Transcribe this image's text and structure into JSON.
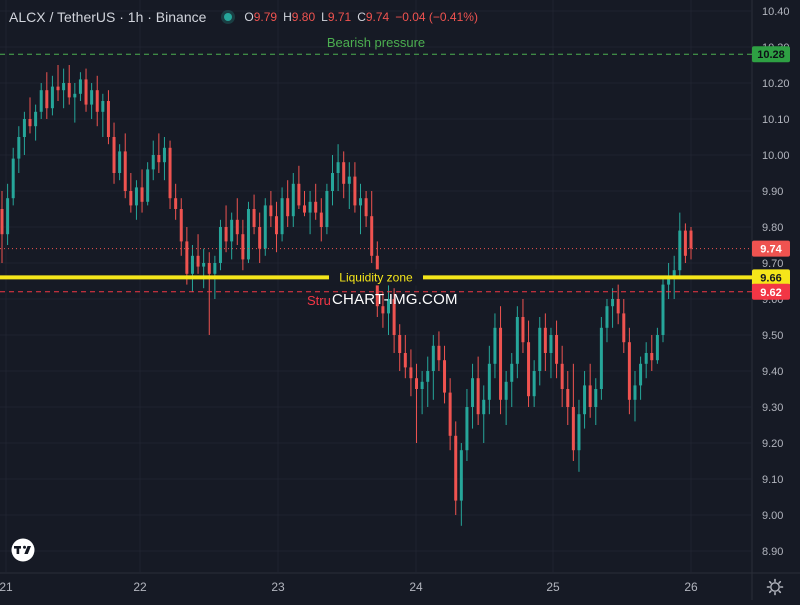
{
  "header": {
    "symbol": "ALCX / TetherUS · 1h · Binance",
    "open_label": "O",
    "open": "9.79",
    "high_label": "H",
    "high": "9.80",
    "low_label": "L",
    "low": "9.71",
    "close_label": "C",
    "close": "9.74",
    "change": "−0.04 (−0.41%)"
  },
  "watermark": "CHART-IMG.COM",
  "annotations": {
    "bearish": "Bearish pressure",
    "liquidity": "Liquidity zone",
    "structure": "Stru"
  },
  "price_tags": {
    "bearish": "10.28",
    "current": "9.74",
    "liquidity": "9.66",
    "structure": "9.62"
  },
  "colors": {
    "background": "#161a25",
    "up": "#26a69a",
    "down": "#ef5350",
    "liquidity": "#f5e61a",
    "bearish": "#4caf50",
    "structure": "#f23645"
  },
  "icons": {
    "logo": "tradingview-logo-icon",
    "settings": "gear-icon",
    "status": "market-open-dot-icon"
  },
  "chart_data": {
    "type": "candlestick",
    "y_axis_ticks": [
      "10.40",
      "10.30",
      "10.20",
      "10.10",
      "10.00",
      "9.90",
      "9.80",
      "9.70",
      "9.60",
      "9.50",
      "9.40",
      "9.30",
      "9.20",
      "9.10",
      "9.00",
      "8.90"
    ],
    "ylim": [
      8.85,
      10.43
    ],
    "x_axis_ticks": [
      "21",
      "22",
      "23",
      "24",
      "25",
      "26"
    ],
    "levels": [
      {
        "label": "Bearish pressure",
        "price": 10.28
      },
      {
        "label": "Liquidity zone",
        "price": 9.66
      },
      {
        "label": "Stru",
        "price": 9.62
      }
    ],
    "last_price": 9.74,
    "candles": [
      {
        "o": 9.85,
        "h": 9.9,
        "l": 9.7,
        "c": 9.78
      },
      {
        "o": 9.78,
        "h": 9.92,
        "l": 9.75,
        "c": 9.88
      },
      {
        "o": 9.88,
        "h": 10.02,
        "l": 9.86,
        "c": 9.99
      },
      {
        "o": 9.99,
        "h": 10.08,
        "l": 9.95,
        "c": 10.05
      },
      {
        "o": 10.05,
        "h": 10.12,
        "l": 10.0,
        "c": 10.1
      },
      {
        "o": 10.1,
        "h": 10.16,
        "l": 10.06,
        "c": 10.08
      },
      {
        "o": 10.08,
        "h": 10.14,
        "l": 10.04,
        "c": 10.12
      },
      {
        "o": 10.12,
        "h": 10.2,
        "l": 10.1,
        "c": 10.18
      },
      {
        "o": 10.18,
        "h": 10.23,
        "l": 10.1,
        "c": 10.13
      },
      {
        "o": 10.13,
        "h": 10.22,
        "l": 10.11,
        "c": 10.19
      },
      {
        "o": 10.19,
        "h": 10.25,
        "l": 10.15,
        "c": 10.18
      },
      {
        "o": 10.18,
        "h": 10.24,
        "l": 10.13,
        "c": 10.2
      },
      {
        "o": 10.2,
        "h": 10.25,
        "l": 10.14,
        "c": 10.16
      },
      {
        "o": 10.16,
        "h": 10.2,
        "l": 10.09,
        "c": 10.17
      },
      {
        "o": 10.17,
        "h": 10.23,
        "l": 10.15,
        "c": 10.21
      },
      {
        "o": 10.21,
        "h": 10.24,
        "l": 10.12,
        "c": 10.14
      },
      {
        "o": 10.14,
        "h": 10.2,
        "l": 10.1,
        "c": 10.18
      },
      {
        "o": 10.18,
        "h": 10.22,
        "l": 10.08,
        "c": 10.12
      },
      {
        "o": 10.12,
        "h": 10.17,
        "l": 10.05,
        "c": 10.15
      },
      {
        "o": 10.15,
        "h": 10.18,
        "l": 10.03,
        "c": 10.05
      },
      {
        "o": 10.05,
        "h": 10.09,
        "l": 9.92,
        "c": 9.95
      },
      {
        "o": 9.95,
        "h": 10.03,
        "l": 9.93,
        "c": 10.01
      },
      {
        "o": 10.01,
        "h": 10.06,
        "l": 9.88,
        "c": 9.9
      },
      {
        "o": 9.9,
        "h": 9.95,
        "l": 9.84,
        "c": 9.86
      },
      {
        "o": 9.86,
        "h": 9.93,
        "l": 9.82,
        "c": 9.91
      },
      {
        "o": 9.91,
        "h": 9.96,
        "l": 9.84,
        "c": 9.87
      },
      {
        "o": 9.87,
        "h": 9.98,
        "l": 9.86,
        "c": 9.96
      },
      {
        "o": 9.96,
        "h": 10.04,
        "l": 9.93,
        "c": 10.0
      },
      {
        "o": 10.0,
        "h": 10.06,
        "l": 9.95,
        "c": 9.98
      },
      {
        "o": 9.98,
        "h": 10.05,
        "l": 9.93,
        "c": 10.02
      },
      {
        "o": 10.02,
        "h": 10.04,
        "l": 9.85,
        "c": 9.88
      },
      {
        "o": 9.88,
        "h": 9.92,
        "l": 9.82,
        "c": 9.85
      },
      {
        "o": 9.85,
        "h": 9.88,
        "l": 9.72,
        "c": 9.76
      },
      {
        "o": 9.76,
        "h": 9.8,
        "l": 9.64,
        "c": 9.67
      },
      {
        "o": 9.67,
        "h": 9.75,
        "l": 9.62,
        "c": 9.72
      },
      {
        "o": 9.72,
        "h": 9.78,
        "l": 9.67,
        "c": 9.69
      },
      {
        "o": 9.69,
        "h": 9.74,
        "l": 9.63,
        "c": 9.7
      },
      {
        "o": 9.7,
        "h": 9.73,
        "l": 9.5,
        "c": 9.67
      },
      {
        "o": 9.67,
        "h": 9.72,
        "l": 9.6,
        "c": 9.7
      },
      {
        "o": 9.7,
        "h": 9.82,
        "l": 9.68,
        "c": 9.8
      },
      {
        "o": 9.8,
        "h": 9.86,
        "l": 9.73,
        "c": 9.76
      },
      {
        "o": 9.76,
        "h": 9.84,
        "l": 9.71,
        "c": 9.82
      },
      {
        "o": 9.82,
        "h": 9.88,
        "l": 9.75,
        "c": 9.78
      },
      {
        "o": 9.78,
        "h": 9.82,
        "l": 9.68,
        "c": 9.71
      },
      {
        "o": 9.71,
        "h": 9.87,
        "l": 9.7,
        "c": 9.85
      },
      {
        "o": 9.85,
        "h": 9.89,
        "l": 9.78,
        "c": 9.8
      },
      {
        "o": 9.8,
        "h": 9.84,
        "l": 9.7,
        "c": 9.74
      },
      {
        "o": 9.74,
        "h": 9.88,
        "l": 9.72,
        "c": 9.86
      },
      {
        "o": 9.86,
        "h": 9.9,
        "l": 9.8,
        "c": 9.83
      },
      {
        "o": 9.83,
        "h": 9.87,
        "l": 9.73,
        "c": 9.78
      },
      {
        "o": 9.78,
        "h": 9.91,
        "l": 9.76,
        "c": 9.88
      },
      {
        "o": 9.88,
        "h": 9.93,
        "l": 9.8,
        "c": 9.83
      },
      {
        "o": 9.83,
        "h": 9.95,
        "l": 9.8,
        "c": 9.92
      },
      {
        "o": 9.92,
        "h": 9.97,
        "l": 9.85,
        "c": 9.86
      },
      {
        "o": 9.86,
        "h": 9.9,
        "l": 9.83,
        "c": 9.84
      },
      {
        "o": 9.84,
        "h": 9.9,
        "l": 9.78,
        "c": 9.87
      },
      {
        "o": 9.87,
        "h": 9.92,
        "l": 9.82,
        "c": 9.84
      },
      {
        "o": 9.84,
        "h": 9.88,
        "l": 9.76,
        "c": 9.8
      },
      {
        "o": 9.8,
        "h": 9.92,
        "l": 9.78,
        "c": 9.9
      },
      {
        "o": 9.9,
        "h": 10.0,
        "l": 9.86,
        "c": 9.95
      },
      {
        "o": 9.95,
        "h": 10.03,
        "l": 9.9,
        "c": 9.98
      },
      {
        "o": 9.98,
        "h": 10.01,
        "l": 9.88,
        "c": 9.92
      },
      {
        "o": 9.92,
        "h": 9.98,
        "l": 9.85,
        "c": 9.94
      },
      {
        "o": 9.94,
        "h": 9.98,
        "l": 9.84,
        "c": 9.86
      },
      {
        "o": 9.86,
        "h": 9.92,
        "l": 9.78,
        "c": 9.88
      },
      {
        "o": 9.88,
        "h": 9.9,
        "l": 9.8,
        "c": 9.83
      },
      {
        "o": 9.83,
        "h": 9.9,
        "l": 9.7,
        "c": 9.72
      },
      {
        "o": 9.72,
        "h": 9.76,
        "l": 9.55,
        "c": 9.58
      },
      {
        "o": 9.58,
        "h": 9.62,
        "l": 9.52,
        "c": 9.56
      },
      {
        "o": 9.56,
        "h": 9.65,
        "l": 9.5,
        "c": 9.6
      },
      {
        "o": 9.6,
        "h": 9.63,
        "l": 9.45,
        "c": 9.5
      },
      {
        "o": 9.5,
        "h": 9.53,
        "l": 9.4,
        "c": 9.45
      },
      {
        "o": 9.45,
        "h": 9.5,
        "l": 9.38,
        "c": 9.41
      },
      {
        "o": 9.41,
        "h": 9.46,
        "l": 9.33,
        "c": 9.38
      },
      {
        "o": 9.38,
        "h": 9.42,
        "l": 9.2,
        "c": 9.35
      },
      {
        "o": 9.35,
        "h": 9.4,
        "l": 9.28,
        "c": 9.37
      },
      {
        "o": 9.37,
        "h": 9.44,
        "l": 9.3,
        "c": 9.4
      },
      {
        "o": 9.4,
        "h": 9.5,
        "l": 9.32,
        "c": 9.47
      },
      {
        "o": 9.47,
        "h": 9.51,
        "l": 9.4,
        "c": 9.43
      },
      {
        "o": 9.43,
        "h": 9.47,
        "l": 9.31,
        "c": 9.34
      },
      {
        "o": 9.34,
        "h": 9.38,
        "l": 9.18,
        "c": 9.22
      },
      {
        "o": 9.22,
        "h": 9.26,
        "l": 9.0,
        "c": 9.04
      },
      {
        "o": 9.04,
        "h": 9.2,
        "l": 8.97,
        "c": 9.18
      },
      {
        "o": 9.18,
        "h": 9.35,
        "l": 9.15,
        "c": 9.3
      },
      {
        "o": 9.3,
        "h": 9.42,
        "l": 9.24,
        "c": 9.38
      },
      {
        "o": 9.38,
        "h": 9.44,
        "l": 9.25,
        "c": 9.28
      },
      {
        "o": 9.28,
        "h": 9.36,
        "l": 9.2,
        "c": 9.32
      },
      {
        "o": 9.32,
        "h": 9.47,
        "l": 9.28,
        "c": 9.42
      },
      {
        "o": 9.42,
        "h": 9.56,
        "l": 9.38,
        "c": 9.52
      },
      {
        "o": 9.52,
        "h": 9.58,
        "l": 9.28,
        "c": 9.32
      },
      {
        "o": 9.32,
        "h": 9.4,
        "l": 9.25,
        "c": 9.37
      },
      {
        "o": 9.37,
        "h": 9.45,
        "l": 9.3,
        "c": 9.42
      },
      {
        "o": 9.42,
        "h": 9.58,
        "l": 9.38,
        "c": 9.55
      },
      {
        "o": 9.55,
        "h": 9.6,
        "l": 9.45,
        "c": 9.48
      },
      {
        "o": 9.48,
        "h": 9.54,
        "l": 9.3,
        "c": 9.33
      },
      {
        "o": 9.33,
        "h": 9.43,
        "l": 9.3,
        "c": 9.4
      },
      {
        "o": 9.4,
        "h": 9.55,
        "l": 9.36,
        "c": 9.52
      },
      {
        "o": 9.52,
        "h": 9.56,
        "l": 9.4,
        "c": 9.45
      },
      {
        "o": 9.45,
        "h": 9.52,
        "l": 9.38,
        "c": 9.5
      },
      {
        "o": 9.5,
        "h": 9.54,
        "l": 9.38,
        "c": 9.42
      },
      {
        "o": 9.42,
        "h": 9.47,
        "l": 9.3,
        "c": 9.35
      },
      {
        "o": 9.35,
        "h": 9.4,
        "l": 9.25,
        "c": 9.3
      },
      {
        "o": 9.3,
        "h": 9.42,
        "l": 9.15,
        "c": 9.18
      },
      {
        "o": 9.18,
        "h": 9.32,
        "l": 9.12,
        "c": 9.28
      },
      {
        "o": 9.28,
        "h": 9.4,
        "l": 9.24,
        "c": 9.36
      },
      {
        "o": 9.36,
        "h": 9.42,
        "l": 9.27,
        "c": 9.3
      },
      {
        "o": 9.3,
        "h": 9.38,
        "l": 9.25,
        "c": 9.35
      },
      {
        "o": 9.35,
        "h": 9.55,
        "l": 9.32,
        "c": 9.52
      },
      {
        "o": 9.52,
        "h": 9.6,
        "l": 9.48,
        "c": 9.58
      },
      {
        "o": 9.58,
        "h": 9.63,
        "l": 9.52,
        "c": 9.6
      },
      {
        "o": 9.6,
        "h": 9.64,
        "l": 9.53,
        "c": 9.56
      },
      {
        "o": 9.56,
        "h": 9.6,
        "l": 9.45,
        "c": 9.48
      },
      {
        "o": 9.48,
        "h": 9.52,
        "l": 9.28,
        "c": 9.32
      },
      {
        "o": 9.32,
        "h": 9.4,
        "l": 9.26,
        "c": 9.36
      },
      {
        "o": 9.36,
        "h": 9.44,
        "l": 9.32,
        "c": 9.42
      },
      {
        "o": 9.42,
        "h": 9.48,
        "l": 9.38,
        "c": 9.45
      },
      {
        "o": 9.45,
        "h": 9.5,
        "l": 9.4,
        "c": 9.43
      },
      {
        "o": 9.43,
        "h": 9.52,
        "l": 9.42,
        "c": 9.5
      },
      {
        "o": 9.5,
        "h": 9.66,
        "l": 9.48,
        "c": 9.64
      },
      {
        "o": 9.64,
        "h": 9.7,
        "l": 9.6,
        "c": 9.66
      },
      {
        "o": 9.66,
        "h": 9.72,
        "l": 9.6,
        "c": 9.68
      },
      {
        "o": 9.68,
        "h": 9.84,
        "l": 9.66,
        "c": 9.79
      },
      {
        "o": 9.79,
        "h": 9.81,
        "l": 9.7,
        "c": 9.72
      },
      {
        "o": 9.79,
        "h": 9.8,
        "l": 9.71,
        "c": 9.74
      }
    ]
  }
}
